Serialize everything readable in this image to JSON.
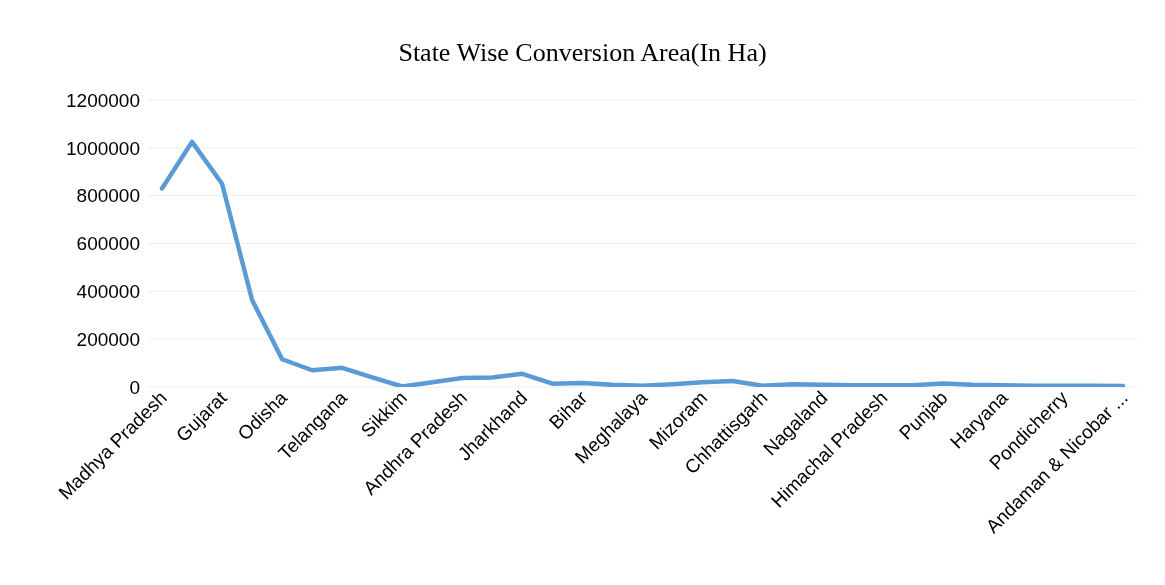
{
  "chart_data": {
    "type": "line",
    "title": "State Wise Conversion Area(In Ha)",
    "categories": [
      "Madhya Pradesh",
      null,
      "Gujarat",
      null,
      "Odisha",
      null,
      "Telangana",
      null,
      "Sikkim",
      null,
      "Andhra Pradesh",
      null,
      "Jharkhand",
      null,
      "Bihar",
      null,
      "Meghalaya",
      null,
      "Mizoram",
      null,
      "Chhattisgarh",
      null,
      "Nagaland",
      null,
      "Himachal Pradesh",
      null,
      "Punjab",
      null,
      "Haryana",
      null,
      "Pondicherry",
      null,
      "Andaman & Nicobar ..."
    ],
    "series": [
      {
        "color": "#5b9bd5",
        "values": [
          830000,
          1025000,
          850000,
          364000,
          116000,
          70000,
          80000,
          40000,
          2000,
          20000,
          38000,
          40000,
          55000,
          14000,
          17000,
          9000,
          5000,
          12000,
          20000,
          25000,
          5000,
          12000,
          9000,
          7000,
          7000,
          7000,
          15000,
          9000,
          7000,
          5000,
          5000,
          5000,
          4000
        ]
      }
    ],
    "ylim": [
      0,
      1200000
    ],
    "yticks": [
      0,
      200000,
      400000,
      600000,
      800000,
      1000000,
      1200000
    ],
    "grid": "y",
    "legend": false,
    "marker": "none",
    "line_style": "solid"
  }
}
